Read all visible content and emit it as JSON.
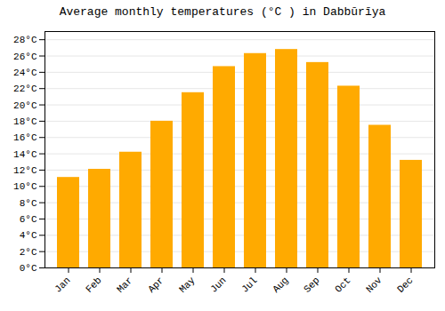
{
  "chart_data": {
    "type": "bar",
    "title": "Average monthly temperatures (°C ) in Dabbūrīya",
    "categories": [
      "Jan",
      "Feb",
      "Mar",
      "Apr",
      "May",
      "Jun",
      "Jul",
      "Aug",
      "Sep",
      "Oct",
      "Nov",
      "Dec"
    ],
    "values": [
      11.1,
      12.1,
      14.2,
      18.0,
      21.5,
      24.7,
      26.3,
      26.8,
      25.2,
      22.3,
      17.5,
      13.2
    ],
    "color": "#FFAA00",
    "ylim": [
      0,
      29
    ],
    "yticks": [
      {
        "value": 0,
        "label": "0°C"
      },
      {
        "value": 2,
        "label": "2°C"
      },
      {
        "value": 4,
        "label": "4°C"
      },
      {
        "value": 6,
        "label": "6°C"
      },
      {
        "value": 8,
        "label": "8°C"
      },
      {
        "value": 10,
        "label": "10°C"
      },
      {
        "value": 12,
        "label": "12°C"
      },
      {
        "value": 14,
        "label": "14°C"
      },
      {
        "value": 16,
        "label": "16°C"
      },
      {
        "value": 18,
        "label": "18°C"
      },
      {
        "value": 20,
        "label": "20°C"
      },
      {
        "value": 22,
        "label": "22°C"
      },
      {
        "value": 24,
        "label": "24°C"
      },
      {
        "value": 26,
        "label": "26°C"
      },
      {
        "value": 28,
        "label": "28°C"
      }
    ],
    "grid": true
  }
}
